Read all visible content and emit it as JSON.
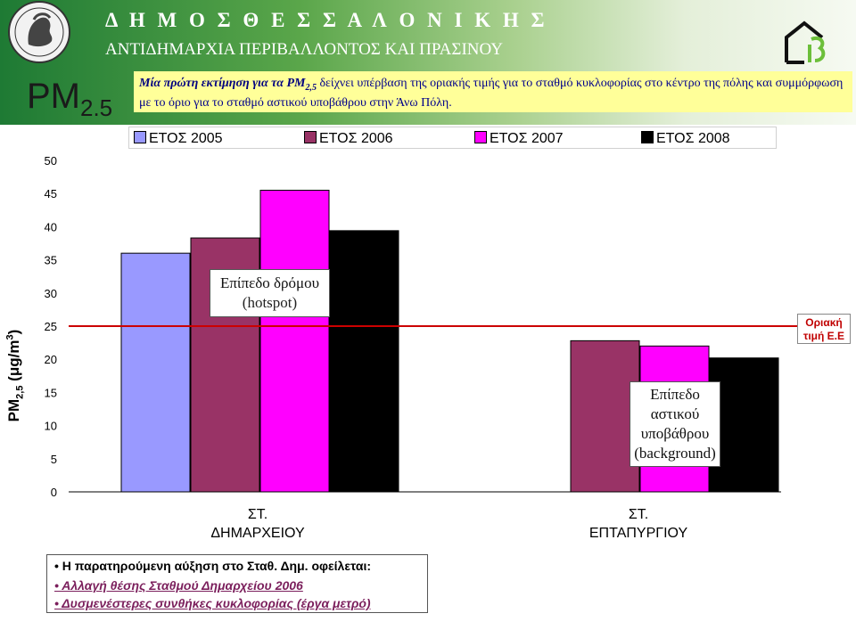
{
  "header": {
    "title_main": "Δ Η Μ Ο Σ   Θ Ε Σ Σ Α Λ Ο Ν Ι Κ Η Σ",
    "title_sub": "ΑΝΤΙΔΗΜΑΡΧΙΑ ΠΕΡΙΒΑΛΛΟΝΤΟΣ ΚΑΙ ΠΡΑΣΙΝΟΥ",
    "pm_main": "PM",
    "pm_sub": "2.5",
    "note_emphasis": "Μία πρώτη εκτίμηση για τα PM",
    "note_emphasis_sub": "2,5",
    "note_text": " δείχνει υπέρβαση της οριακής τιμής για το σταθμό κυκλοφορίας στο κέντρο της πόλης και συμμόρφωση με το όριο για το σταθμό αστικού υποβάθρου στην Άνω Πόλη."
  },
  "chart_data": {
    "type": "bar",
    "categories": [
      "ΣΤ.\nΔΗΜΑΡΧΕΙΟΥ",
      "ΣΤ.\nΕΠΤΑΠΥΡΓΙΟΥ"
    ],
    "series": [
      {
        "name": "ΕΤΟΣ 2005",
        "values": [
          36,
          null
        ],
        "color": "#9999ff"
      },
      {
        "name": "ΕΤΟΣ 2006",
        "values": [
          38.3,
          22.8
        ],
        "color": "#993366"
      },
      {
        "name": "ΕΤΟΣ 2007",
        "values": [
          45.5,
          22
        ],
        "color": "#ff00ff"
      },
      {
        "name": "ΕΤΟΣ 2008",
        "values": [
          39.4,
          20.2
        ],
        "color": "#000000"
      }
    ],
    "ylabel_main": "PM",
    "ylabel_sub": "2,5",
    "ylabel_unit": " (μg/m",
    "ylabel_sup": "3",
    "ylabel_close": ")",
    "ylim": [
      0,
      50
    ],
    "yticks": [
      0,
      5,
      10,
      15,
      20,
      25,
      30,
      35,
      40,
      45,
      50
    ],
    "limit_line": {
      "value": 25,
      "color": "#cc0000",
      "label_line1": "Οριακή",
      "label_line2": "τιμή Ε.Ε"
    },
    "annotations": {
      "hotspot_line1": "Επίπεδο δρόμου",
      "hotspot_line2": "(hotspot)",
      "background_line1": "Επίπεδο",
      "background_line2": "αστικού",
      "background_line3": "υποβάθρου",
      "background_line4": "(background)"
    },
    "legend_position": "top",
    "grid": false
  },
  "notes": {
    "line0": "• Η παρατηρούμενη αύξηση στο Σταθ. Δημ. οφείλεται:",
    "line1": "• Αλλαγή θέσης Σταθμού Δημαρχείου 2006",
    "line2": "• Δυσμενέστερες συνθήκες κυκλοφορίας (έργα μετρό)"
  }
}
